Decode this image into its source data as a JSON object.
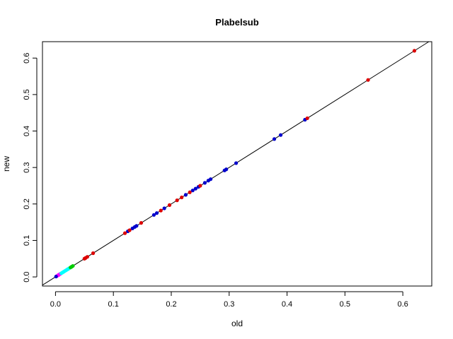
{
  "chart_data": {
    "type": "scatter",
    "title": "Plabelsub",
    "xlabel": "old",
    "ylabel": "new",
    "xlim": [
      -0.0225,
      0.65
    ],
    "ylim": [
      -0.025,
      0.645
    ],
    "xticks": [
      0.0,
      0.1,
      0.2,
      0.3,
      0.4,
      0.5,
      0.6
    ],
    "yticks": [
      0.0,
      0.1,
      0.2,
      0.3,
      0.4,
      0.5,
      0.6
    ],
    "reference_line": {
      "slope": 1,
      "intercept": 0,
      "color": "#000000"
    },
    "grid": false,
    "legend": "none",
    "series": [
      {
        "color": "#FF00FF",
        "points": [
          [
            0.002,
            0.002
          ],
          [
            0.004,
            0.004
          ],
          [
            0.005,
            0.005
          ],
          [
            0.006,
            0.006
          ],
          [
            0.008,
            0.008
          ],
          [
            0.009,
            0.009
          ]
        ]
      },
      {
        "color": "#00FFFF",
        "points": [
          [
            0.01,
            0.01
          ],
          [
            0.012,
            0.012
          ],
          [
            0.014,
            0.014
          ],
          [
            0.016,
            0.016
          ],
          [
            0.018,
            0.018
          ],
          [
            0.02,
            0.02
          ],
          [
            0.022,
            0.022
          ],
          [
            0.024,
            0.024
          ]
        ]
      },
      {
        "color": "#00CC00",
        "points": [
          [
            0.026,
            0.026
          ],
          [
            0.028,
            0.028
          ],
          [
            0.03,
            0.03
          ]
        ]
      },
      {
        "color": "#0000CC",
        "points": [
          [
            0.001,
            0.001
          ],
          [
            0.125,
            0.125
          ],
          [
            0.133,
            0.133
          ],
          [
            0.137,
            0.137
          ],
          [
            0.14,
            0.14
          ],
          [
            0.17,
            0.17
          ],
          [
            0.175,
            0.175
          ],
          [
            0.188,
            0.188
          ],
          [
            0.225,
            0.225
          ],
          [
            0.237,
            0.237
          ],
          [
            0.242,
            0.242
          ],
          [
            0.247,
            0.247
          ],
          [
            0.258,
            0.258
          ],
          [
            0.264,
            0.264
          ],
          [
            0.268,
            0.268
          ],
          [
            0.292,
            0.292
          ],
          [
            0.295,
            0.295
          ],
          [
            0.312,
            0.312
          ],
          [
            0.378,
            0.378
          ],
          [
            0.389,
            0.389
          ],
          [
            0.431,
            0.431
          ]
        ]
      },
      {
        "color": "#DD0000",
        "points": [
          [
            0.05,
            0.05
          ],
          [
            0.052,
            0.052
          ],
          [
            0.055,
            0.055
          ],
          [
            0.065,
            0.065
          ],
          [
            0.12,
            0.12
          ],
          [
            0.128,
            0.128
          ],
          [
            0.148,
            0.148
          ],
          [
            0.182,
            0.182
          ],
          [
            0.197,
            0.197
          ],
          [
            0.21,
            0.21
          ],
          [
            0.218,
            0.218
          ],
          [
            0.232,
            0.232
          ],
          [
            0.25,
            0.25
          ],
          [
            0.435,
            0.435
          ],
          [
            0.54,
            0.54
          ],
          [
            0.62,
            0.62
          ]
        ]
      }
    ]
  }
}
